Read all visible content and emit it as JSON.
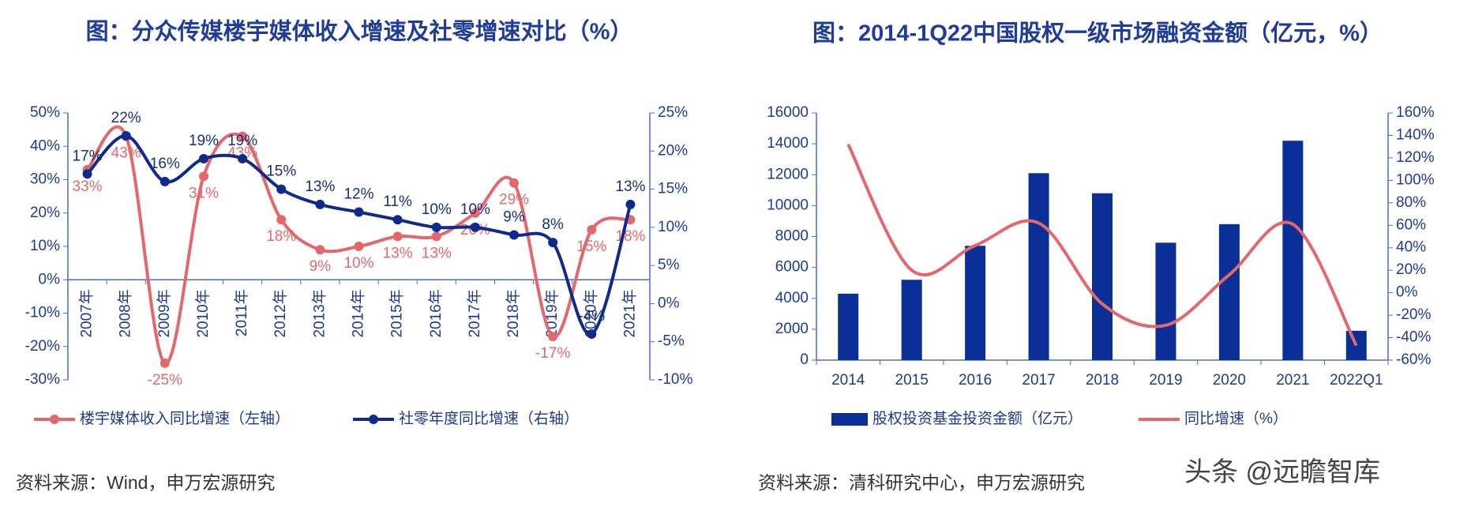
{
  "chart_data": [
    {
      "type": "line",
      "title": "图：分众传媒楼宇媒体收入增速及社零增速对比（%）",
      "source": "资料来源：Wind，申万宏源研究",
      "categories": [
        "2007年",
        "2008年",
        "2009年",
        "2010年",
        "2011年",
        "2012年",
        "2013年",
        "2014年",
        "2015年",
        "2016年",
        "2017年",
        "2018年",
        "2019年",
        "2020年",
        "2021年"
      ],
      "series": [
        {
          "name": "楼宇媒体收入同比增速（左轴）",
          "color": "#e3686c",
          "type": "line",
          "axis": "y",
          "values": [
            33,
            43,
            -25,
            31,
            43,
            18,
            9,
            10,
            13,
            13,
            20,
            29,
            -17,
            15,
            18
          ],
          "value_labels": [
            "33%",
            "43%",
            "-25%",
            "31%",
            "43%",
            "18%",
            "9%",
            "10%",
            "13%",
            "13%",
            "20%",
            "29%",
            "-17%",
            "15%",
            "18%"
          ]
        },
        {
          "name": "社零年度同比增速（右轴）",
          "color": "#0d2a8c",
          "type": "line",
          "axis": "y2",
          "values": [
            17,
            22,
            16,
            19,
            19,
            15,
            13,
            12,
            11,
            10,
            10,
            9,
            8,
            -4,
            13
          ],
          "value_labels": [
            "17%",
            "22%",
            "16%",
            "19%",
            "19%",
            "15%",
            "13%",
            "12%",
            "11%",
            "10%",
            "10%",
            "9%",
            "8%",
            "-4%",
            "13%"
          ]
        }
      ],
      "ylim": [
        -30,
        50
      ],
      "yticks": [
        {
          "value": -30,
          "label": "-30%"
        },
        {
          "value": -20,
          "label": "-20%"
        },
        {
          "value": -10,
          "label": "-10%"
        },
        {
          "value": 0,
          "label": "0%"
        },
        {
          "value": 10,
          "label": "10%"
        },
        {
          "value": 20,
          "label": "20%"
        },
        {
          "value": 30,
          "label": "30%"
        },
        {
          "value": 40,
          "label": "40%"
        },
        {
          "value": 50,
          "label": "50%"
        }
      ],
      "y2lim": [
        -10,
        25
      ],
      "y2ticks": [
        {
          "value": -10,
          "label": "-10%"
        },
        {
          "value": -5,
          "label": "-5%"
        },
        {
          "value": 0,
          "label": "0%"
        },
        {
          "value": 5,
          "label": "5%"
        },
        {
          "value": 10,
          "label": "10%"
        },
        {
          "value": 15,
          "label": "15%"
        },
        {
          "value": 20,
          "label": "20%"
        },
        {
          "value": 25,
          "label": "25%"
        }
      ],
      "grid": false
    },
    {
      "type": "bar",
      "title": "图：2014-1Q22中国股权一级市场融资金额（亿元，%）",
      "source": "资料来源：清科研究中心，申万宏源研究",
      "watermark": "头条 @远瞻智库",
      "categories": [
        "2014",
        "2015",
        "2016",
        "2017",
        "2018",
        "2019",
        "2020",
        "2021",
        "2022Q1"
      ],
      "series": [
        {
          "name": "股权投资基金投资金额（亿元）",
          "color": "#0a2f96",
          "type": "bar",
          "axis": "y",
          "values": [
            4300,
            5200,
            7400,
            12100,
            10800,
            7600,
            8800,
            14200,
            1900
          ]
        },
        {
          "name": "同比增速（%）",
          "color": "#e3686c",
          "type": "line",
          "axis": "y2",
          "values": [
            132,
            20,
            42,
            62,
            -10,
            -29,
            16,
            61,
            -47
          ]
        }
      ],
      "ylim": [
        0,
        16000
      ],
      "yticks": [
        0,
        2000,
        4000,
        6000,
        8000,
        10000,
        12000,
        14000,
        16000
      ],
      "y2lim": [
        -60,
        160
      ],
      "y2ticks": [
        {
          "value": -60,
          "label": "-60%"
        },
        {
          "value": -40,
          "label": "-40%"
        },
        {
          "value": -20,
          "label": "-20%"
        },
        {
          "value": 0,
          "label": "0%"
        },
        {
          "value": 20,
          "label": "20%"
        },
        {
          "value": 40,
          "label": "40%"
        },
        {
          "value": 60,
          "label": "60%"
        },
        {
          "value": 80,
          "label": "80%"
        },
        {
          "value": 100,
          "label": "100%"
        },
        {
          "value": 120,
          "label": "120%"
        },
        {
          "value": 140,
          "label": "140%"
        },
        {
          "value": 160,
          "label": "160%"
        }
      ],
      "grid": false
    }
  ]
}
